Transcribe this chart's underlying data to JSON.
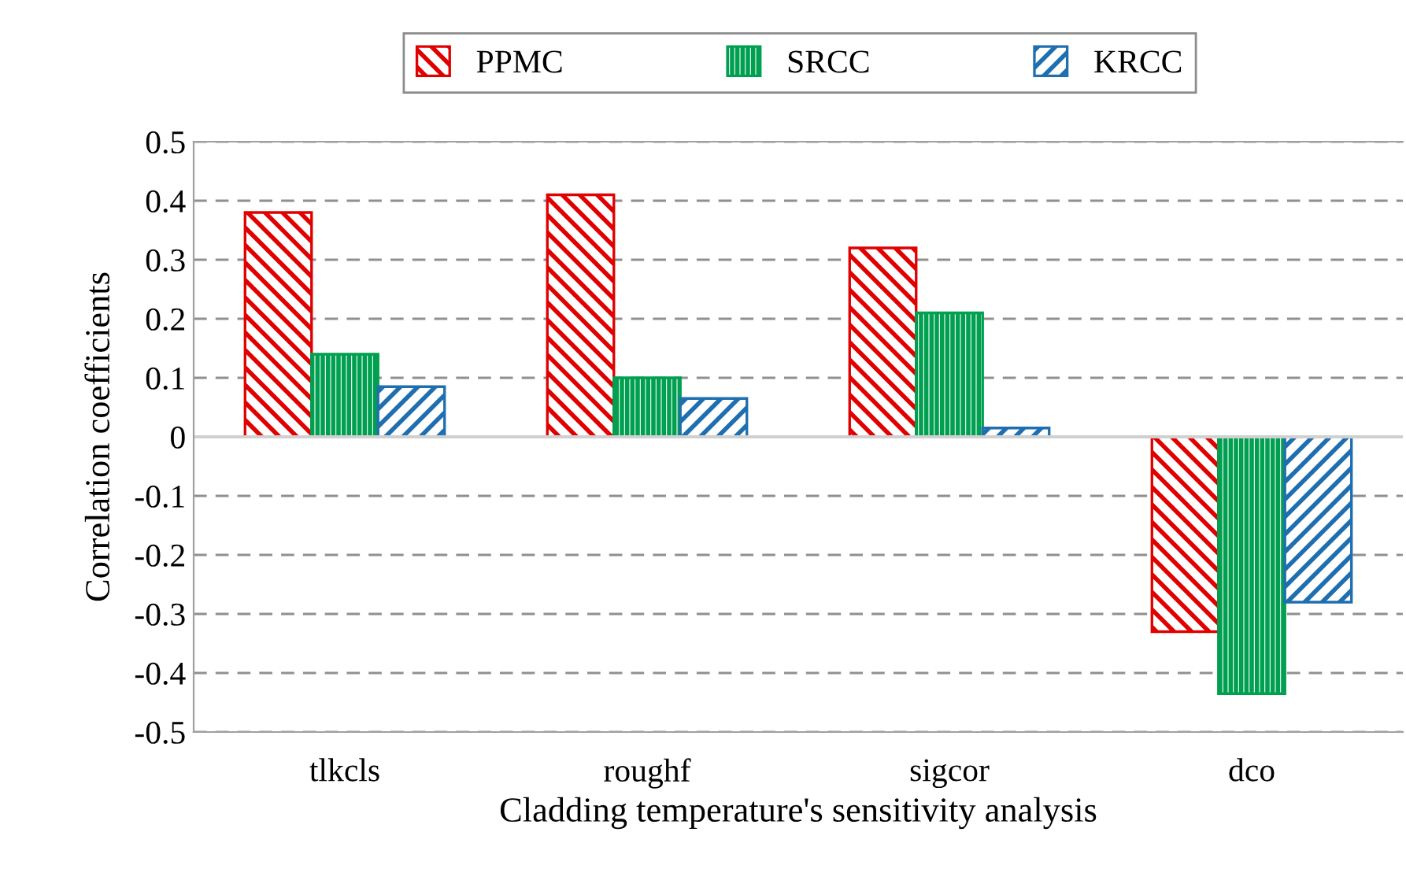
{
  "chart_data": {
    "type": "bar",
    "xlabel": "Cladding temperature's sensitivity analysis",
    "ylabel": "Correlation coefficients",
    "categories": [
      "tlkcls",
      "roughf",
      "sigcor",
      "dco"
    ],
    "series": [
      {
        "name": "PPMC",
        "color": "#e00000",
        "values": [
          0.38,
          0.41,
          0.32,
          -0.33
        ]
      },
      {
        "name": "SRCC",
        "color": "#00a050",
        "values": [
          0.14,
          0.1,
          0.21,
          -0.435
        ]
      },
      {
        "name": "KRCC",
        "color": "#1f6fb0",
        "values": [
          0.085,
          0.065,
          0.015,
          -0.28
        ]
      }
    ],
    "ylim": [
      -0.5,
      0.5
    ],
    "yticks": [
      -0.5,
      -0.4,
      -0.3,
      -0.2,
      -0.1,
      0,
      0.1,
      0.2,
      0.3,
      0.4,
      0.5
    ],
    "grid": "y",
    "legend": "top"
  }
}
